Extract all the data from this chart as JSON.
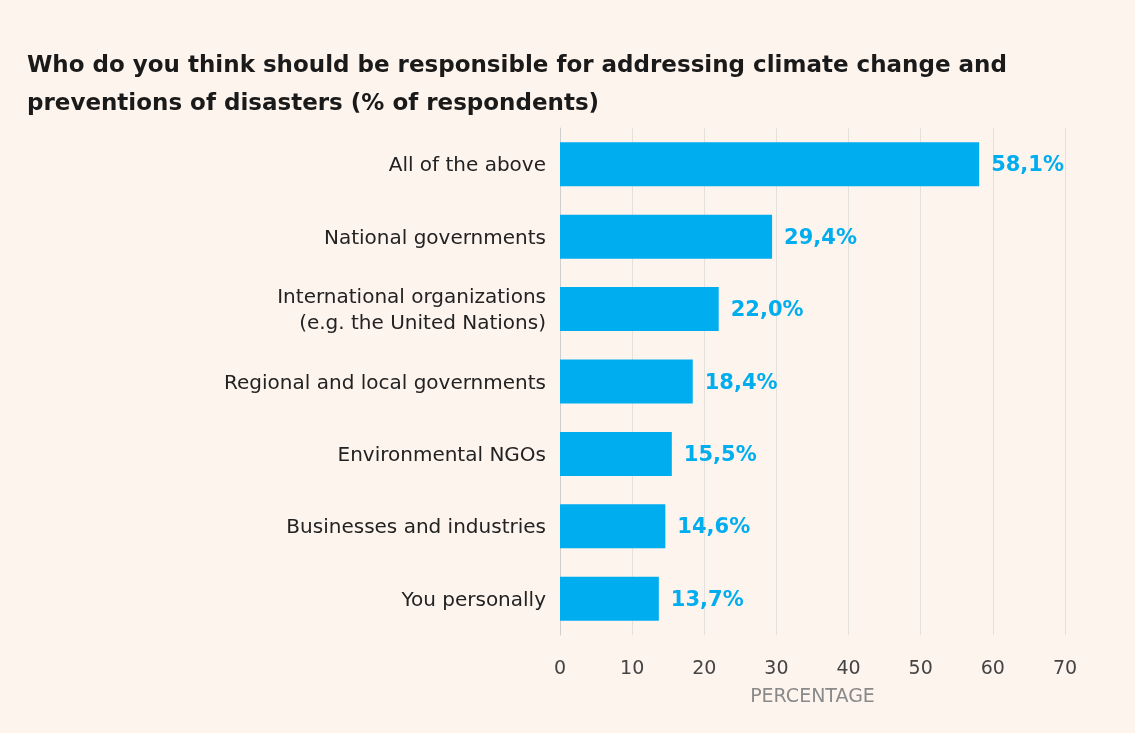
{
  "chart_data": {
    "type": "bar",
    "orientation": "horizontal",
    "title": "Who do you think should be responsible for addressing climate change and\npreventions of disasters (% of respondents)",
    "xlabel": "PERCENTAGE",
    "categories": [
      "All of the above",
      "National governments",
      "International organizations\n(e.g. the United Nations)",
      "Regional and local governments",
      "Environmental NGOs",
      "Businesses and industries",
      "You personally"
    ],
    "values": [
      58.1,
      29.4,
      22.0,
      18.4,
      15.5,
      14.6,
      13.7
    ],
    "value_labels": [
      "58,1%",
      "29,4%",
      "22,0%",
      "18,4%",
      "15,5%",
      "14,6%",
      "13,7%"
    ],
    "color": "#00adef",
    "xlim": [
      0,
      70
    ],
    "xticks": [
      0,
      10,
      20,
      30,
      40,
      50,
      60,
      70
    ],
    "grid": "x"
  }
}
